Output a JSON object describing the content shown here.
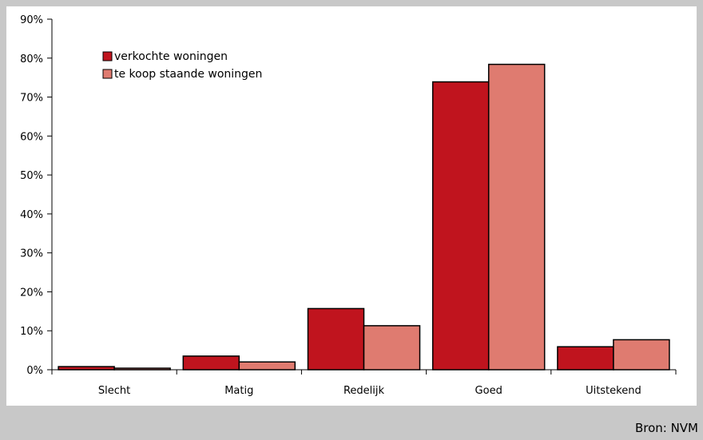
{
  "source_label": "Bron: NVM",
  "chart_data": {
    "type": "bar",
    "categories": [
      "Slecht",
      "Matig",
      "Redelijk",
      "Goed",
      "Uitstekend"
    ],
    "series": [
      {
        "name": "verkochte woningen",
        "color": "#c0141e",
        "values": [
          0.8,
          3.5,
          15.7,
          73.9,
          5.9
        ]
      },
      {
        "name": "te koop staande woningen",
        "color": "#df7b70",
        "values": [
          0.4,
          2.0,
          11.3,
          78.4,
          7.7
        ]
      }
    ],
    "ylim": [
      0,
      90
    ],
    "yticks": [
      "0%",
      "10%",
      "20%",
      "30%",
      "40%",
      "50%",
      "60%",
      "70%",
      "80%",
      "90%"
    ],
    "legend_position": "top-left",
    "grid": false
  }
}
